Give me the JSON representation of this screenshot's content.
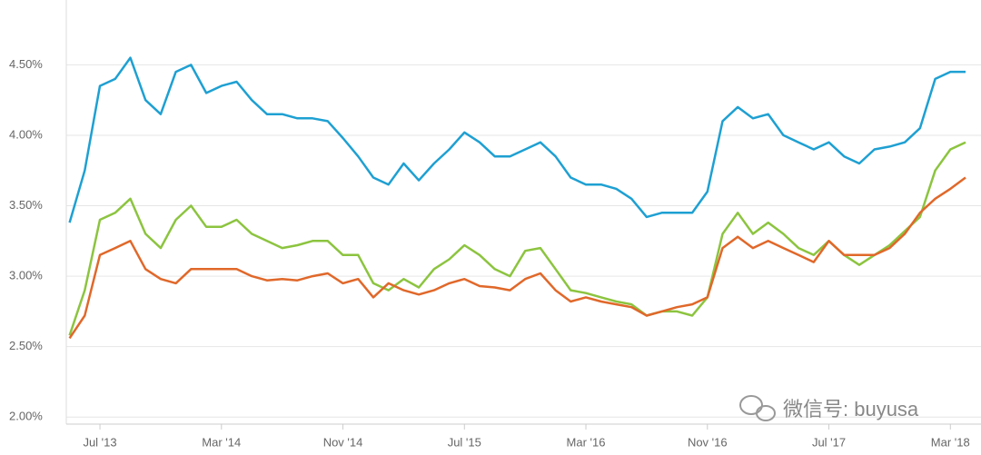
{
  "chart_data": {
    "type": "line",
    "x": [
      "2013-05",
      "2013-06",
      "2013-07",
      "2013-08",
      "2013-09",
      "2013-10",
      "2013-11",
      "2013-12",
      "2014-01",
      "2014-02",
      "2014-03",
      "2014-04",
      "2014-05",
      "2014-06",
      "2014-07",
      "2014-08",
      "2014-09",
      "2014-10",
      "2014-11",
      "2014-12",
      "2015-01",
      "2015-02",
      "2015-03",
      "2015-04",
      "2015-05",
      "2015-06",
      "2015-07",
      "2015-08",
      "2015-09",
      "2015-10",
      "2015-11",
      "2015-12",
      "2016-01",
      "2016-02",
      "2016-03",
      "2016-04",
      "2016-05",
      "2016-06",
      "2016-07",
      "2016-08",
      "2016-09",
      "2016-10",
      "2016-11",
      "2016-12",
      "2017-01",
      "2017-02",
      "2017-03",
      "2017-04",
      "2017-05",
      "2017-06",
      "2017-07",
      "2017-08",
      "2017-09",
      "2017-10",
      "2017-11",
      "2017-12",
      "2018-01",
      "2018-02",
      "2018-03",
      "2018-04"
    ],
    "series": [
      {
        "color": "#1ea0d2",
        "values": [
          3.38,
          3.75,
          4.35,
          4.4,
          4.55,
          4.25,
          4.15,
          4.45,
          4.5,
          4.3,
          4.35,
          4.38,
          4.25,
          4.15,
          4.15,
          4.12,
          4.12,
          4.1,
          3.98,
          3.85,
          3.7,
          3.65,
          3.8,
          3.68,
          3.8,
          3.9,
          4.02,
          3.95,
          3.85,
          3.85,
          3.9,
          3.95,
          3.85,
          3.7,
          3.65,
          3.65,
          3.62,
          3.55,
          3.42,
          3.45,
          3.45,
          3.45,
          3.6,
          4.1,
          4.2,
          4.12,
          4.15,
          4.0,
          3.95,
          3.9,
          3.95,
          3.85,
          3.8,
          3.9,
          3.92,
          3.95,
          4.05,
          4.4,
          4.45,
          4.45
        ]
      },
      {
        "color": "#8cc43f",
        "values": [
          2.58,
          2.9,
          3.4,
          3.45,
          3.55,
          3.3,
          3.2,
          3.4,
          3.5,
          3.35,
          3.35,
          3.4,
          3.3,
          3.25,
          3.2,
          3.22,
          3.25,
          3.25,
          3.15,
          3.15,
          2.95,
          2.9,
          2.98,
          2.92,
          3.05,
          3.12,
          3.22,
          3.15,
          3.05,
          3.0,
          3.18,
          3.2,
          3.05,
          2.9,
          2.88,
          2.85,
          2.82,
          2.8,
          2.72,
          2.75,
          2.75,
          2.72,
          2.85,
          3.3,
          3.45,
          3.3,
          3.38,
          3.3,
          3.2,
          3.15,
          3.25,
          3.15,
          3.08,
          3.15,
          3.22,
          3.32,
          3.42,
          3.75,
          3.9,
          3.95
        ]
      },
      {
        "color": "#e0682a",
        "values": [
          2.56,
          2.72,
          3.15,
          3.2,
          3.25,
          3.05,
          2.98,
          2.95,
          3.05,
          3.05,
          3.05,
          3.05,
          3.0,
          2.97,
          2.98,
          2.97,
          3.0,
          3.02,
          2.95,
          2.98,
          2.85,
          2.95,
          2.9,
          2.87,
          2.9,
          2.95,
          2.98,
          2.93,
          2.92,
          2.9,
          2.98,
          3.02,
          2.9,
          2.82,
          2.85,
          2.82,
          2.8,
          2.78,
          2.72,
          2.75,
          2.78,
          2.8,
          2.85,
          3.2,
          3.28,
          3.2,
          3.25,
          3.2,
          3.15,
          3.1,
          3.25,
          3.15,
          3.15,
          3.15,
          3.2,
          3.3,
          3.45,
          3.55,
          3.62,
          3.7
        ]
      }
    ],
    "xlim": [
      "2013-05",
      "2018-04"
    ],
    "xticks": [
      {
        "value": "2013-07",
        "label": "Jul '13"
      },
      {
        "value": "2014-03",
        "label": "Mar '14"
      },
      {
        "value": "2014-11",
        "label": "Nov '14"
      },
      {
        "value": "2015-07",
        "label": "Jul '15"
      },
      {
        "value": "2016-03",
        "label": "Mar '16"
      },
      {
        "value": "2016-11",
        "label": "Nov '16"
      },
      {
        "value": "2017-07",
        "label": "Jul '17"
      },
      {
        "value": "2018-03",
        "label": "Mar '18"
      }
    ],
    "ylim": [
      1.95,
      4.96
    ],
    "yticks": [
      {
        "value": 2.0,
        "label": "2.00%"
      },
      {
        "value": 2.5,
        "label": "2.50%"
      },
      {
        "value": 3.0,
        "label": "3.00%"
      },
      {
        "value": 3.5,
        "label": "3.50%"
      },
      {
        "value": 4.0,
        "label": "4.00%"
      },
      {
        "value": 4.5,
        "label": "4.50%"
      }
    ],
    "grid": true,
    "annotations": [
      "微信号: buyusa"
    ]
  }
}
